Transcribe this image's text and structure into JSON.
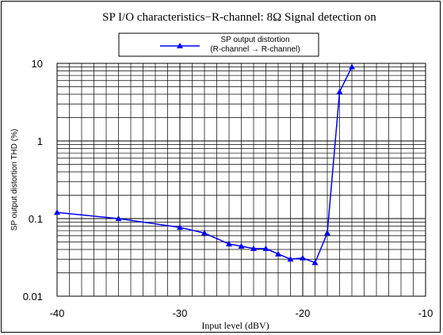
{
  "chart_data": {
    "type": "line",
    "title": "SP I/O characteristics−R-channel: 8Ω  Signal detection on",
    "xlabel": "Input level (dBV)",
    "ylabel": "SP output distortion THD (%)",
    "xlim": [
      -40,
      -10
    ],
    "ylim": [
      0.01,
      10
    ],
    "yscale": "log",
    "grid": true,
    "legend_position": "top-center",
    "x_ticks": [
      "-40",
      "-30",
      "-20",
      "-10"
    ],
    "y_ticks": [
      "10",
      "1",
      "0.1",
      "0.01"
    ],
    "series": [
      {
        "name": "SP output distortion",
        "name_line2": "(R-channel → R-channel)",
        "color": "#0000ff",
        "marker": "triangle",
        "x": [
          -40,
          -35,
          -30,
          -28,
          -26,
          -25,
          -24,
          -23,
          -22,
          -21,
          -20,
          -19,
          -18,
          -17,
          -16
        ],
        "y": [
          0.12,
          0.1,
          0.077,
          0.065,
          0.047,
          0.044,
          0.041,
          0.041,
          0.035,
          0.03,
          0.031,
          0.027,
          0.065,
          4.3,
          9.0
        ]
      }
    ]
  }
}
